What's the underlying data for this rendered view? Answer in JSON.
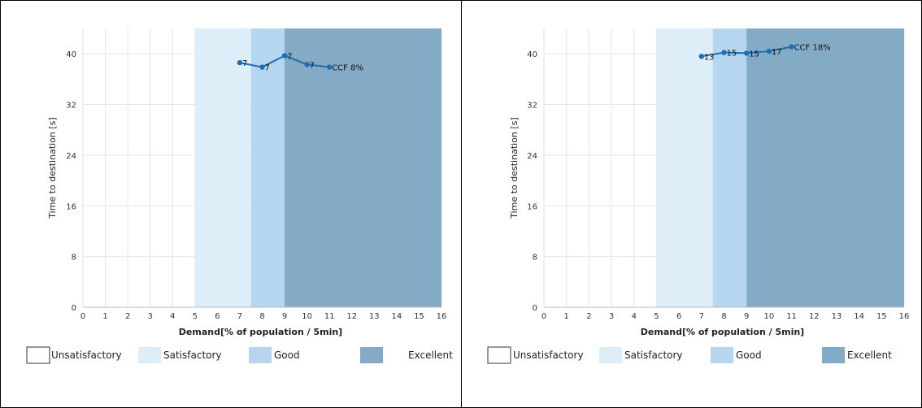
{
  "colors": {
    "unsatisfactory": "#ffffff",
    "satisfactory": "#deeef8",
    "good": "#b5d6ee",
    "excellent": "#84abc6",
    "line": "#1f6eaf",
    "grid": "#e6e6e6",
    "axis": "#333333"
  },
  "legend": {
    "unsatisfactory": "Unsatisfactory",
    "satisfactory": "Satisfactory",
    "good": "Good",
    "excellent": "Excellent"
  },
  "chart_data": [
    {
      "type": "line",
      "xlabel": "Demand[% of population / 5min]",
      "ylabel": "Time to destination [s]",
      "xlim": [
        0,
        16
      ],
      "ylim": [
        0,
        44
      ],
      "xticks": [
        0,
        1,
        2,
        3,
        4,
        5,
        6,
        7,
        8,
        9,
        10,
        11,
        12,
        13,
        14,
        15,
        16
      ],
      "yticks": [
        0,
        8,
        16,
        24,
        32,
        40
      ],
      "grid": true,
      "zones": [
        {
          "name": "Satisfactory",
          "from": 5,
          "to": 7.5
        },
        {
          "name": "Good",
          "from": 7.5,
          "to": 9
        },
        {
          "name": "Excellent",
          "from": 9,
          "to": 16
        }
      ],
      "series": [
        {
          "x": [
            7,
            8,
            9,
            10,
            11
          ],
          "y": [
            38.6,
            37.9,
            39.7,
            38.3,
            37.9
          ],
          "labels": [
            "7",
            "7",
            "7",
            "7",
            "CCF 8%"
          ]
        }
      ]
    },
    {
      "type": "line",
      "xlabel": "Demand[% of population / 5min]",
      "ylabel": "Time to destination [s]",
      "xlim": [
        0,
        16
      ],
      "ylim": [
        0,
        44
      ],
      "xticks": [
        0,
        1,
        2,
        3,
        4,
        5,
        6,
        7,
        8,
        9,
        10,
        11,
        12,
        13,
        14,
        15,
        16
      ],
      "yticks": [
        0,
        8,
        16,
        24,
        32,
        40
      ],
      "grid": true,
      "zones": [
        {
          "name": "Satisfactory",
          "from": 5,
          "to": 7.5
        },
        {
          "name": "Good",
          "from": 7.5,
          "to": 9
        },
        {
          "name": "Excellent",
          "from": 9,
          "to": 16
        }
      ],
      "series": [
        {
          "x": [
            7,
            8,
            9,
            10,
            11
          ],
          "y": [
            39.6,
            40.2,
            40.1,
            40.4,
            41.1
          ],
          "labels": [
            "13",
            "15",
            "15",
            "17",
            "CCF 18%"
          ]
        }
      ]
    }
  ]
}
